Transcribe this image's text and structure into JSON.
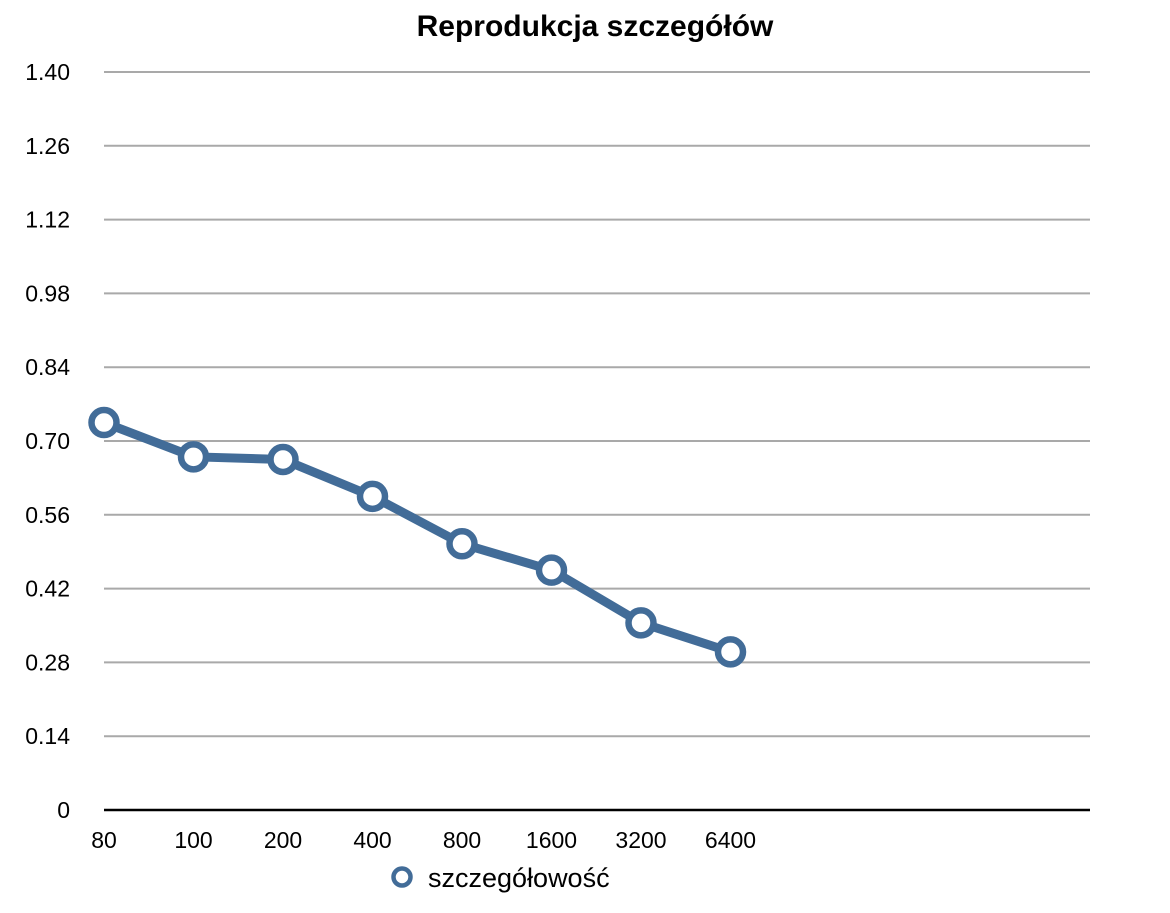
{
  "chart_data": {
    "type": "line",
    "title": "Reprodukcja szczegółów",
    "categories": [
      "80",
      "100",
      "200",
      "400",
      "800",
      "1600",
      "3200",
      "6400"
    ],
    "series": [
      {
        "name": "szczegółowość",
        "values": [
          0.735,
          0.67,
          0.665,
          0.595,
          0.505,
          0.455,
          0.355,
          0.3
        ]
      }
    ],
    "y_ticks": [
      "0",
      "0.14",
      "0.28",
      "0.42",
      "0.56",
      "0.70",
      "0.84",
      "0.98",
      "1.12",
      "1.26",
      "1.40"
    ],
    "ylim": [
      0,
      1.4
    ],
    "xlabel": "",
    "ylabel": "",
    "grid": true,
    "legend_position": "bottom",
    "colors": {
      "series": "#426c98",
      "marker_fill": "#ffffff",
      "grid": "#a9a9a9",
      "axis": "#000000"
    }
  }
}
